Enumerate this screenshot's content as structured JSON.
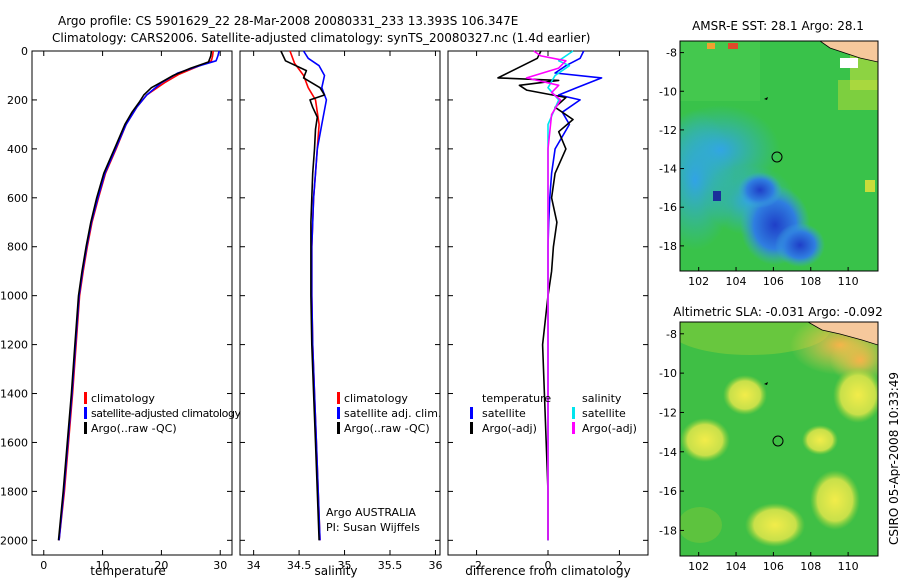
{
  "header": {
    "line1": "Argo profile: CS 5901629_22 28-Mar-2008 20080331_233 13.393S 106.347E",
    "line2": "Climatology: CARS2006. Satellite-adjusted climatology: synTS_20080327.nc (1.4d earlier)"
  },
  "footer_stamp": "CSIRO 05-Apr-2008 10:33:49",
  "colors": {
    "climatology": "#ff0000",
    "satellite": "#0000ff",
    "argo": "#000000",
    "sat_salt": "#00e5ee",
    "argo_salt": "#ff00ff"
  },
  "chart_data": [
    {
      "type": "line",
      "id": "temperature",
      "xlabel": "temperature",
      "xlim": [
        -2,
        32
      ],
      "xticks": [
        0,
        10,
        20,
        30
      ],
      "ylim": [
        2060,
        0
      ],
      "yticks": [
        0,
        200,
        400,
        600,
        800,
        1000,
        1200,
        1400,
        1600,
        1800,
        2000
      ],
      "legend": [
        "climatology",
        "satellite-adjusted climatology",
        "Argo(..raw -QC)"
      ],
      "series": [
        {
          "name": "climatology",
          "color": "#ff0000",
          "points": [
            [
              28.8,
              0
            ],
            [
              28.7,
              20
            ],
            [
              28.5,
              40
            ],
            [
              26,
              65
            ],
            [
              23,
              95
            ],
            [
              20.5,
              130
            ],
            [
              17.5,
              180
            ],
            [
              15.8,
              230
            ],
            [
              14,
              300
            ],
            [
              12.3,
              400
            ],
            [
              10.5,
              500
            ],
            [
              9.3,
              600
            ],
            [
              8.2,
              700
            ],
            [
              7.4,
              800
            ],
            [
              6.7,
              900
            ],
            [
              6.1,
              1000
            ],
            [
              5.5,
              1200
            ],
            [
              4.9,
              1400
            ],
            [
              4.2,
              1600
            ],
            [
              3.5,
              1800
            ],
            [
              2.6,
              2000
            ]
          ]
        },
        {
          "name": "satellite-adjusted climatology",
          "color": "#0000ff",
          "points": [
            [
              29.8,
              0
            ],
            [
              29.6,
              20
            ],
            [
              29.3,
              40
            ],
            [
              26.5,
              60
            ],
            [
              22.8,
              90
            ],
            [
              20,
              130
            ],
            [
              17.5,
              180
            ],
            [
              15.8,
              230
            ],
            [
              14,
              300
            ],
            [
              12.2,
              400
            ],
            [
              10.4,
              500
            ],
            [
              9.2,
              600
            ],
            [
              8.1,
              700
            ],
            [
              7.3,
              800
            ],
            [
              6.6,
              900
            ],
            [
              6,
              1000
            ],
            [
              5.4,
              1200
            ],
            [
              4.8,
              1400
            ],
            [
              4.1,
              1600
            ],
            [
              3.4,
              1800
            ],
            [
              2.6,
              2000
            ]
          ]
        },
        {
          "name": "Argo(..raw -QC)",
          "color": "#000000",
          "points": [
            [
              28.5,
              0
            ],
            [
              28.4,
              20
            ],
            [
              28,
              45
            ],
            [
              25,
              70
            ],
            [
              22,
              100
            ],
            [
              19.8,
              130
            ],
            [
              18.3,
              150
            ],
            [
              17,
              180
            ],
            [
              16.2,
              210
            ],
            [
              15,
              250
            ],
            [
              13.8,
              300
            ],
            [
              12,
              400
            ],
            [
              10.2,
              500
            ],
            [
              9,
              600
            ],
            [
              8,
              700
            ],
            [
              7.2,
              800
            ],
            [
              6.5,
              900
            ],
            [
              5.9,
              1000
            ],
            [
              5.3,
              1200
            ],
            [
              4.7,
              1400
            ],
            [
              4,
              1600
            ],
            [
              3.3,
              1800
            ],
            [
              2.5,
              2000
            ]
          ]
        }
      ]
    },
    {
      "type": "line",
      "id": "salinity",
      "xlabel": "salinity",
      "xlim": [
        33.85,
        36.05
      ],
      "xticks": [
        34,
        34.5,
        35,
        35.5,
        36
      ],
      "ylim": [
        2060,
        0
      ],
      "legend": [
        "climatology",
        "satellite adj. clim.",
        "Argo(..raw -QC)"
      ],
      "annotation": [
        "Argo AUSTRALIA",
        "PI: Susan Wijffels"
      ],
      "series": [
        {
          "name": "climatology",
          "color": "#ff0000",
          "points": [
            [
              34.4,
              0
            ],
            [
              34.45,
              50
            ],
            [
              34.55,
              100
            ],
            [
              34.6,
              150
            ],
            [
              34.68,
              200
            ],
            [
              34.72,
              300
            ],
            [
              34.7,
              400
            ],
            [
              34.68,
              500
            ],
            [
              34.66,
              600
            ],
            [
              34.65,
              700
            ],
            [
              34.64,
              800
            ],
            [
              34.64,
              900
            ],
            [
              34.64,
              1000
            ],
            [
              34.65,
              1200
            ],
            [
              34.67,
              1400
            ],
            [
              34.69,
              1600
            ],
            [
              34.71,
              1800
            ],
            [
              34.73,
              2000
            ]
          ]
        },
        {
          "name": "satellite adj. clim.",
          "color": "#0000ff",
          "points": [
            [
              34.55,
              0
            ],
            [
              34.6,
              30
            ],
            [
              34.72,
              60
            ],
            [
              34.78,
              100
            ],
            [
              34.75,
              150
            ],
            [
              34.8,
              200
            ],
            [
              34.75,
              300
            ],
            [
              34.7,
              400
            ],
            [
              34.68,
              500
            ],
            [
              34.66,
              600
            ],
            [
              34.65,
              700
            ],
            [
              34.64,
              800
            ],
            [
              34.64,
              900
            ],
            [
              34.64,
              1000
            ],
            [
              34.65,
              1200
            ],
            [
              34.67,
              1400
            ],
            [
              34.69,
              1600
            ],
            [
              34.71,
              1800
            ],
            [
              34.73,
              2000
            ]
          ]
        },
        {
          "name": "Argo(..raw -QC)",
          "color": "#000000",
          "points": [
            [
              34.3,
              0
            ],
            [
              34.35,
              40
            ],
            [
              34.58,
              80
            ],
            [
              34.55,
              110
            ],
            [
              34.73,
              150
            ],
            [
              34.78,
              180
            ],
            [
              34.62,
              200
            ],
            [
              34.65,
              230
            ],
            [
              34.7,
              270
            ],
            [
              34.68,
              320
            ],
            [
              34.67,
              400
            ],
            [
              34.65,
              500
            ],
            [
              34.64,
              600
            ],
            [
              34.63,
              700
            ],
            [
              34.63,
              800
            ],
            [
              34.63,
              900
            ],
            [
              34.63,
              1000
            ],
            [
              34.64,
              1200
            ],
            [
              34.66,
              1400
            ],
            [
              34.68,
              1600
            ],
            [
              34.7,
              1800
            ],
            [
              34.72,
              2000
            ]
          ]
        }
      ]
    },
    {
      "type": "line",
      "id": "difference",
      "xlabel": "difference from climatology",
      "xlim": [
        -2.8,
        2.8
      ],
      "xticks": [
        -2,
        0,
        2
      ],
      "ylim": [
        2060,
        0
      ],
      "legend_left": {
        "heading": "temperature",
        "items": [
          "satellite",
          "Argo(-adj)"
        ]
      },
      "legend_right": {
        "heading": "salinity",
        "items": [
          "satellite",
          "Argo(-adj)"
        ]
      },
      "series": [
        {
          "name": "temperature satellite",
          "color": "#0000ff",
          "points": [
            [
              1,
              0
            ],
            [
              0.9,
              30
            ],
            [
              0.5,
              60
            ],
            [
              0.2,
              90
            ],
            [
              1.5,
              110
            ],
            [
              0.8,
              150
            ],
            [
              0.3,
              180
            ],
            [
              0.9,
              200
            ],
            [
              0.4,
              250
            ],
            [
              0.6,
              300
            ],
            [
              0.2,
              400
            ],
            [
              0.1,
              500
            ],
            [
              0.05,
              600
            ],
            [
              0.02,
              700
            ],
            [
              0,
              800
            ],
            [
              0,
              1000
            ],
            [
              0,
              1200
            ],
            [
              0,
              1400
            ],
            [
              0,
              1600
            ],
            [
              0,
              1800
            ],
            [
              0,
              2000
            ]
          ]
        },
        {
          "name": "temperature Argo(-adj)",
          "color": "#000000",
          "points": [
            [
              -0.2,
              0
            ],
            [
              -0.3,
              30
            ],
            [
              -1.4,
              110
            ],
            [
              0.3,
              120
            ],
            [
              -0.8,
              140
            ],
            [
              -0.6,
              160
            ],
            [
              0.5,
              190
            ],
            [
              0.2,
              230
            ],
            [
              0.7,
              280
            ],
            [
              0.3,
              330
            ],
            [
              0.5,
              400
            ],
            [
              0.2,
              500
            ],
            [
              0.1,
              600
            ],
            [
              0.25,
              700
            ],
            [
              0.15,
              800
            ],
            [
              0.1,
              900
            ],
            [
              0,
              1000
            ],
            [
              -0.15,
              1200
            ],
            [
              -0.1,
              1400
            ],
            [
              -0.05,
              1600
            ],
            [
              0,
              1800
            ],
            [
              0,
              2000
            ]
          ]
        },
        {
          "name": "salinity satellite",
          "color": "#00e5ee",
          "points": [
            [
              0.7,
              0
            ],
            [
              0.5,
              20
            ],
            [
              0.3,
              40
            ],
            [
              0.6,
              60
            ],
            [
              0.2,
              100
            ],
            [
              0.0,
              150
            ],
            [
              0.3,
              200
            ],
            [
              0.0,
              300
            ],
            [
              0,
              400
            ],
            [
              0,
              600
            ],
            [
              0,
              800
            ],
            [
              0,
              1000
            ],
            [
              0,
              1200
            ],
            [
              0,
              1400
            ],
            [
              0,
              1600
            ],
            [
              0,
              1800
            ],
            [
              0,
              2000
            ]
          ]
        },
        {
          "name": "salinity Argo(-adj)",
          "color": "#ff00ff",
          "points": [
            [
              -0.4,
              0
            ],
            [
              -0.2,
              20
            ],
            [
              0.5,
              40
            ],
            [
              0.3,
              70
            ],
            [
              -0.6,
              110
            ],
            [
              0.3,
              140
            ],
            [
              0.1,
              170
            ],
            [
              0.35,
              200
            ],
            [
              0.1,
              260
            ],
            [
              0.05,
              330
            ],
            [
              0,
              400
            ],
            [
              0,
              600
            ],
            [
              0,
              800
            ],
            [
              0,
              1000
            ],
            [
              0,
              1200
            ],
            [
              0,
              1400
            ],
            [
              0,
              1600
            ],
            [
              0,
              1800
            ],
            [
              0,
              2000
            ]
          ]
        }
      ]
    },
    {
      "type": "heatmap",
      "id": "sst_map",
      "title": "AMSR-E SST: 28.1  Argo: 28.1",
      "xlim": [
        101,
        111.6
      ],
      "xticks": [
        102,
        104,
        106,
        108,
        110
      ],
      "ylim": [
        -19.3,
        -7.4
      ],
      "yticks": [
        -8,
        -10,
        -12,
        -14,
        -16,
        -18
      ],
      "float_position": [
        106.347,
        -13.393
      ]
    },
    {
      "type": "heatmap",
      "id": "sla_map",
      "title": "Altimetric SLA: -0.031  Argo: -0.092",
      "xlim": [
        101,
        111.6
      ],
      "xticks": [
        102,
        104,
        106,
        108,
        110
      ],
      "ylim": [
        -19.3,
        -7.4
      ],
      "yticks": [
        -8,
        -10,
        -12,
        -14,
        -16,
        -18
      ],
      "float_position": [
        106.347,
        -13.393
      ]
    }
  ]
}
